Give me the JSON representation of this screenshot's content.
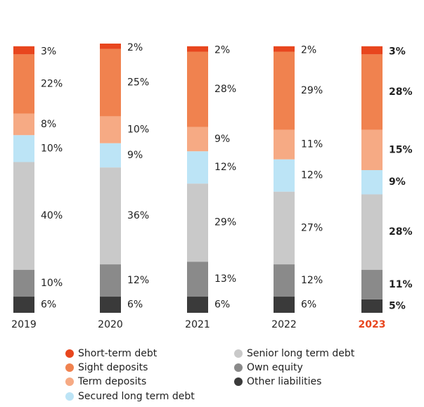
{
  "chart_data": {
    "type": "stacked_bar",
    "categories": [
      "2019",
      "2020",
      "2021",
      "2022",
      "2023"
    ],
    "series": [
      {
        "name": "Short-term debt",
        "color": "#e8461e",
        "values": [
          3,
          2,
          2,
          2,
          3
        ],
        "value_labels": [
          "3%",
          "2%",
          "2%",
          "2%",
          "3%"
        ]
      },
      {
        "name": "Sight deposits",
        "color": "#f0824f",
        "values": [
          22,
          25,
          28,
          29,
          28
        ],
        "value_labels": [
          "22%",
          "25%",
          "28%",
          "29%",
          "28%"
        ]
      },
      {
        "name": "Term deposits",
        "color": "#f6aa84",
        "values": [
          8,
          10,
          9,
          11,
          15
        ],
        "value_labels": [
          "8%",
          "10%",
          "9%",
          "11%",
          "15%"
        ]
      },
      {
        "name": "Secured long term debt",
        "color": "#bce4f6",
        "values": [
          10,
          9,
          12,
          12,
          9
        ],
        "value_labels": [
          "10%",
          "9%",
          "12%",
          "12%",
          "9%"
        ]
      },
      {
        "name": "Senior long term debt",
        "color": "#c9c9c9",
        "values": [
          40,
          36,
          29,
          27,
          28
        ],
        "value_labels": [
          "40%",
          "36%",
          "29%",
          "27%",
          "28%"
        ]
      },
      {
        "name": "Own equity",
        "color": "#8a8a8a",
        "values": [
          10,
          12,
          13,
          12,
          11
        ],
        "value_labels": [
          "10%",
          "12%",
          "13%",
          "12%",
          "11%"
        ]
      },
      {
        "name": "Other liabilities",
        "color": "#3a3a3a",
        "values": [
          6,
          6,
          6,
          6,
          5
        ],
        "value_labels": [
          "6%",
          "6%",
          "6%",
          "6%",
          "5%"
        ]
      }
    ]
  }
}
